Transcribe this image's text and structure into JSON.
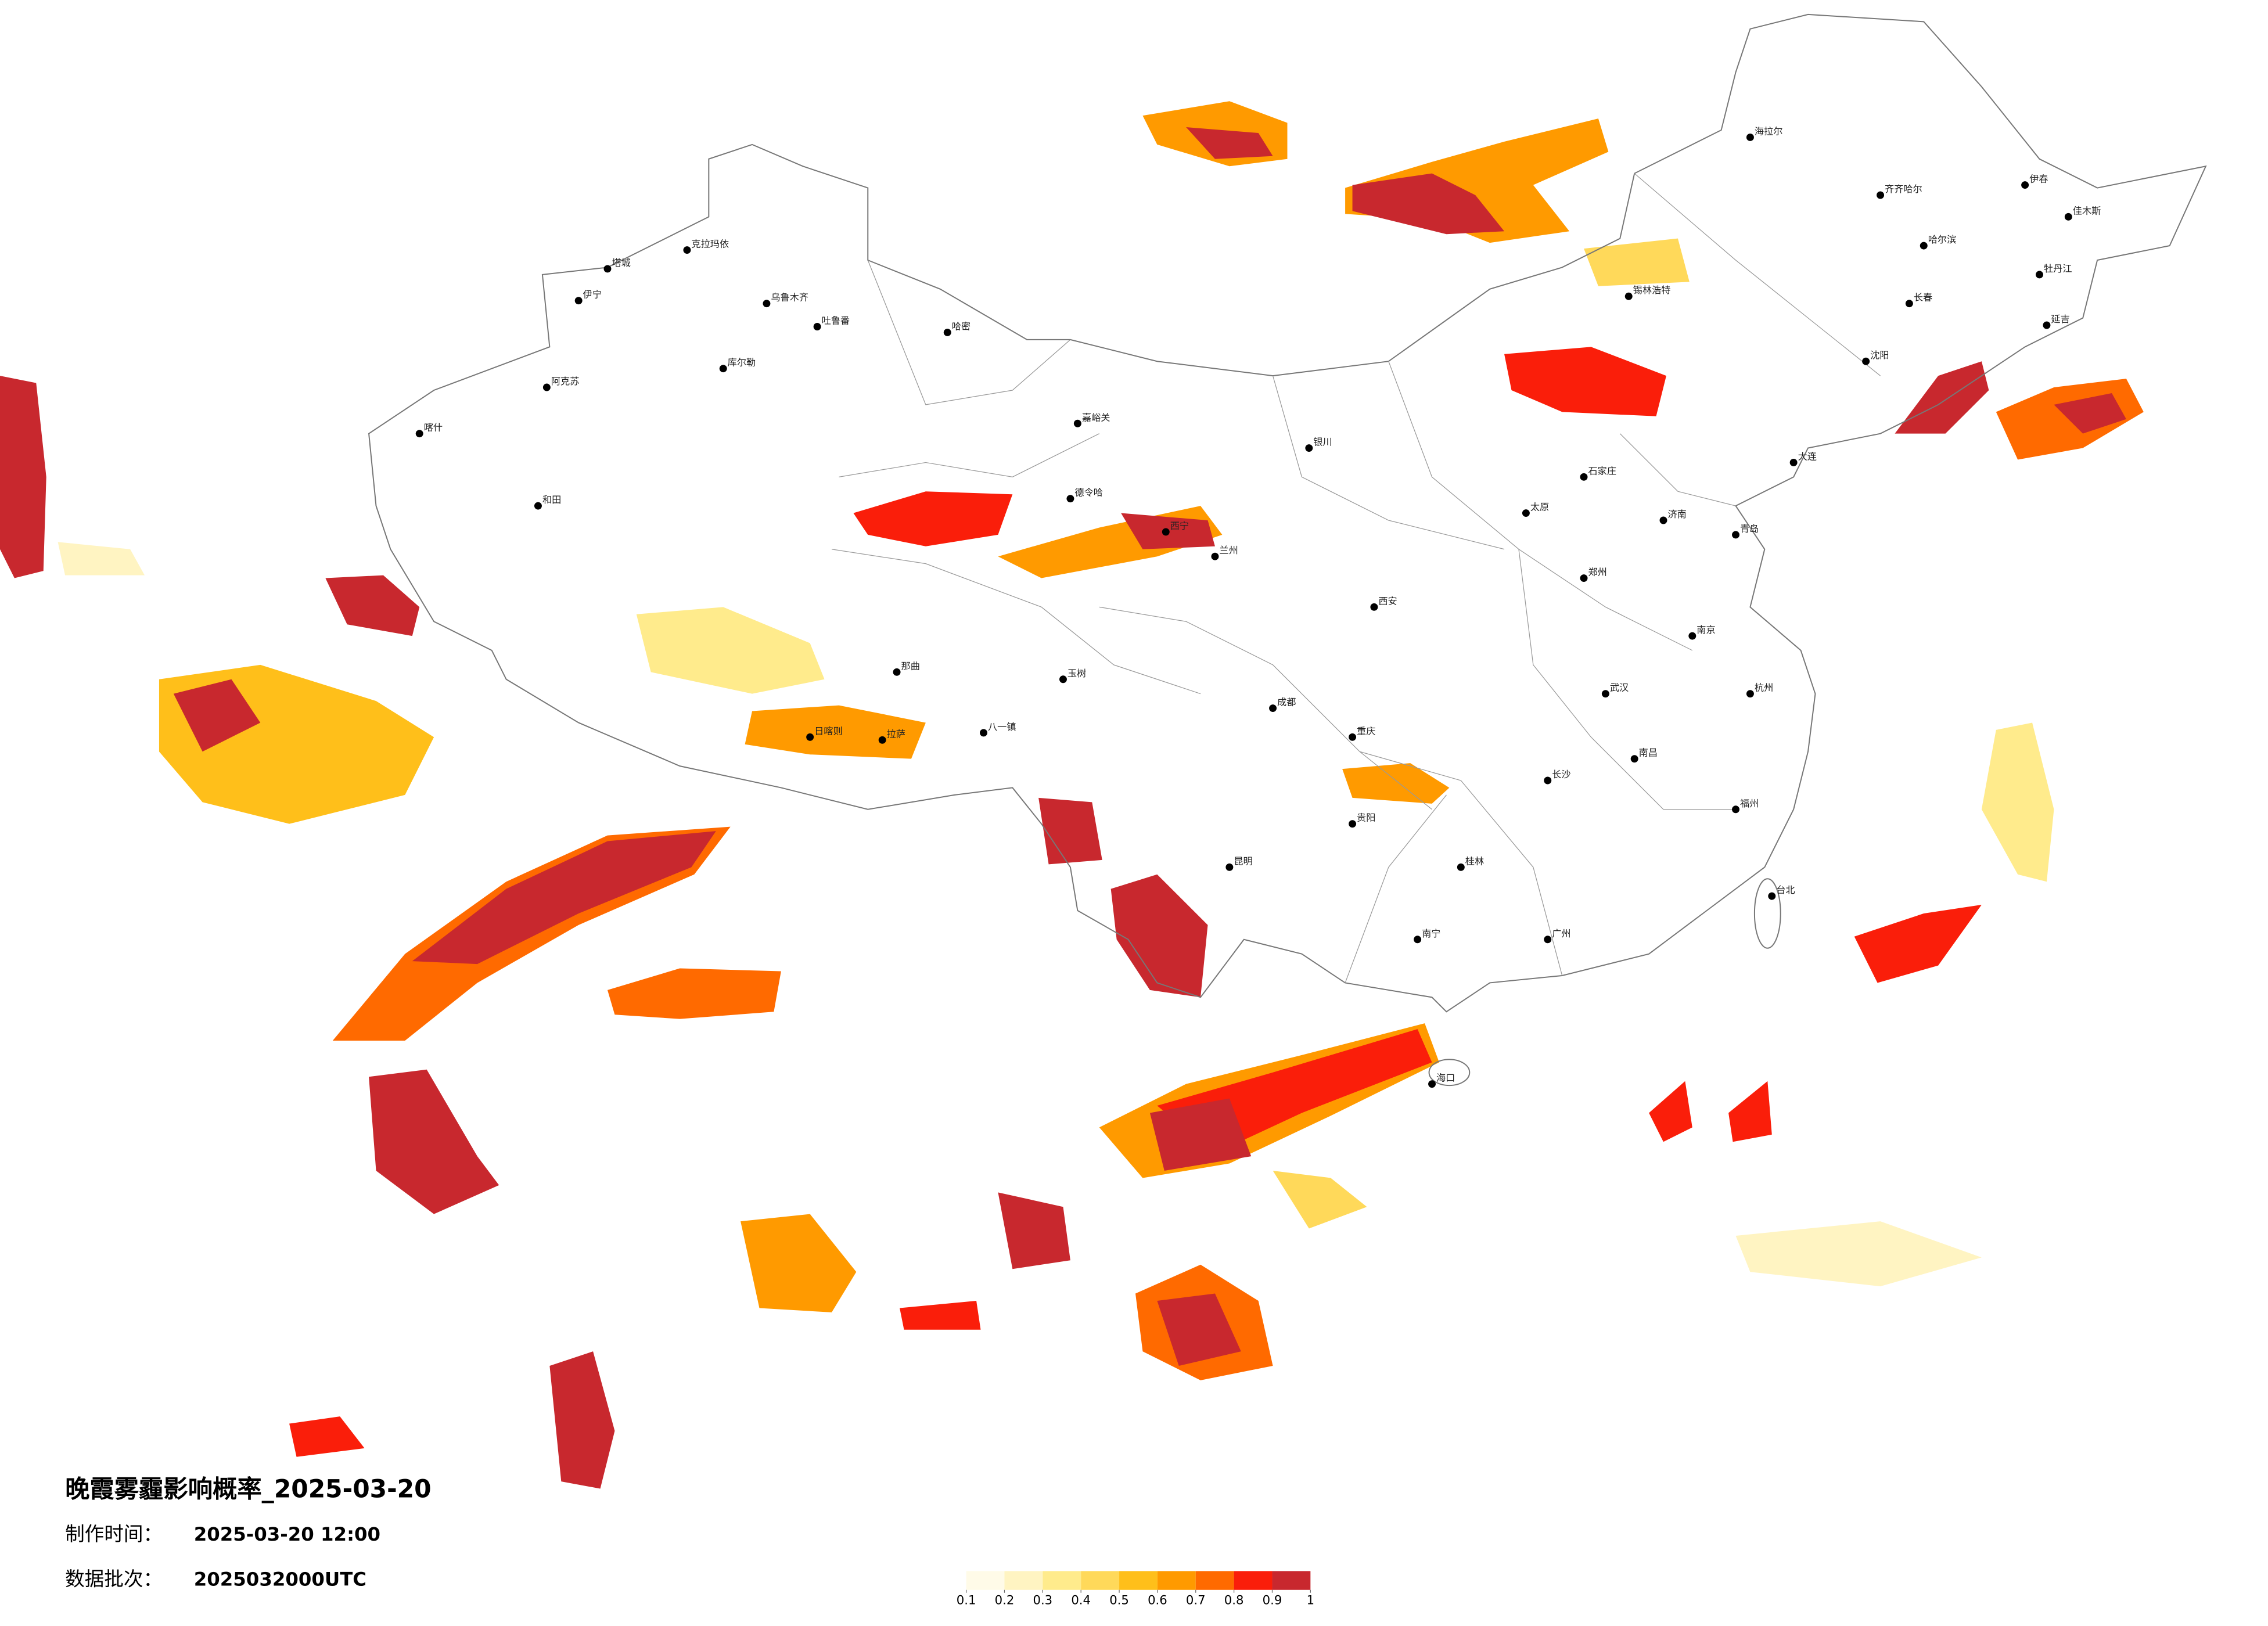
{
  "header": {
    "title": "晚霞雾霾影响概率_2025-03-20",
    "made_time_label": "制作时间：",
    "made_time": "2025-03-20 12:00",
    "batch_label": "数据批次：",
    "batch": "2025032000UTC"
  },
  "legend": {
    "colors": [
      "#fffbe8",
      "#fff4c2",
      "#ffeb8c",
      "#ffd95a",
      "#ffbf1a",
      "#ff9a00",
      "#ff6a00",
      "#fa1e0a",
      "#c8282e"
    ],
    "ticks": [
      0.1,
      0.2,
      0.3,
      0.4,
      0.5,
      0.6,
      0.7,
      0.8,
      0.9,
      1
    ]
  },
  "cities": [
    "克拉玛依",
    "塔城",
    "伊宁",
    "乌鲁木齐",
    "吐鲁番",
    "哈密",
    "库尔勒",
    "阿克苏",
    "喀什",
    "和田",
    "嘉峪关",
    "德令哈",
    "西宁",
    "兰州",
    "银川",
    "那曲",
    "拉萨",
    "日喀则",
    "八一镇",
    "玉树",
    "海拉尔",
    "齐齐哈尔",
    "哈尔滨",
    "伊春",
    "佳木斯",
    "牡丹江",
    "长春",
    "延吉",
    "沈阳",
    "大连",
    "锡林浩特",
    "石家庄",
    "太原",
    "济南",
    "青岛",
    "郑州",
    "西安",
    "南京",
    "杭州",
    "武汉",
    "成都",
    "重庆",
    "长沙",
    "南昌",
    "福州",
    "台北",
    "贵阳",
    "昆明",
    "南宁",
    "桂林",
    "广州",
    "海口"
  ]
}
